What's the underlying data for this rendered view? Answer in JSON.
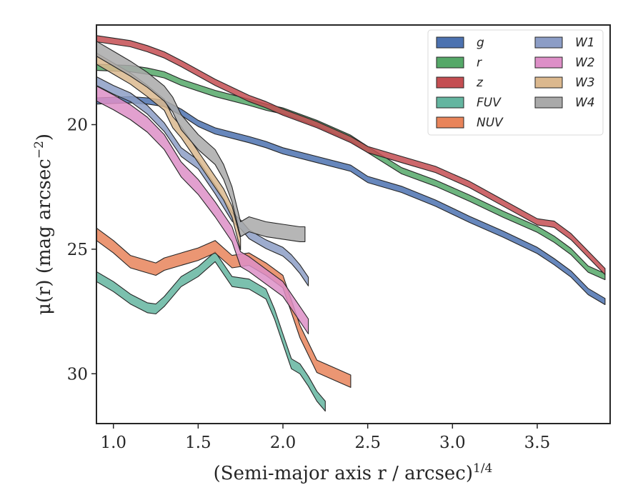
{
  "chart_data": {
    "type": "area",
    "xlabel": "(Semi-major axis r / arcsec)",
    "xlabel_exponent": "1/4",
    "ylabel": "μ(r) (mag arcsec",
    "ylabel_exponent": "−2",
    "ylabel_close": ")",
    "xlim": [
      0.9,
      3.93
    ],
    "ylim": [
      32.0,
      16.0
    ],
    "y_inverted": true,
    "x_ticks": [
      "1.0",
      "1.5",
      "2.0",
      "2.5",
      "3.0",
      "3.5"
    ],
    "x_tick_values": [
      1.0,
      1.5,
      2.0,
      2.5,
      3.0,
      3.5
    ],
    "y_ticks": [
      "20",
      "25",
      "30"
    ],
    "y_tick_values": [
      20,
      25,
      30
    ],
    "grid": false,
    "legend_position": "top-right",
    "series": [
      {
        "name": "g",
        "color": "#4c72b0",
        "x": [
          0.9,
          1.1,
          1.2,
          1.3,
          1.4,
          1.5,
          1.6,
          1.8,
          1.9,
          2.0,
          2.2,
          2.4,
          2.5,
          2.7,
          2.9,
          3.1,
          3.3,
          3.5,
          3.6,
          3.7,
          3.8,
          3.9
        ],
        "y": [
          19.05,
          19.0,
          19.05,
          19.15,
          19.5,
          19.95,
          20.25,
          20.6,
          20.8,
          21.05,
          21.4,
          21.75,
          22.2,
          22.6,
          23.15,
          23.8,
          24.4,
          25.05,
          25.5,
          26.0,
          26.7,
          27.1
        ],
        "width": 0.25
      },
      {
        "name": "r",
        "color": "#55a868",
        "x": [
          0.9,
          1.1,
          1.2,
          1.3,
          1.4,
          1.6,
          1.8,
          1.9,
          2.0,
          2.2,
          2.4,
          2.5,
          2.7,
          2.9,
          3.1,
          3.3,
          3.5,
          3.6,
          3.7,
          3.8,
          3.9
        ],
        "y": [
          17.7,
          17.75,
          17.85,
          18.0,
          18.3,
          18.75,
          19.1,
          19.3,
          19.45,
          19.95,
          20.55,
          21.0,
          21.85,
          22.35,
          22.95,
          23.6,
          24.2,
          24.6,
          25.1,
          25.8,
          26.1
        ],
        "width": 0.25
      },
      {
        "name": "z",
        "color": "#c44e52",
        "x": [
          0.9,
          1.1,
          1.2,
          1.3,
          1.4,
          1.6,
          1.8,
          1.9,
          2.0,
          2.2,
          2.4,
          2.5,
          2.7,
          2.9,
          3.1,
          3.3,
          3.5,
          3.6,
          3.7,
          3.8,
          3.9
        ],
        "y": [
          16.55,
          16.75,
          16.95,
          17.2,
          17.55,
          18.3,
          18.95,
          19.2,
          19.5,
          20.0,
          20.6,
          21.0,
          21.4,
          21.8,
          22.4,
          23.15,
          23.9,
          24.0,
          24.5,
          25.2,
          25.9
        ],
        "width": 0.25
      },
      {
        "name": "FUV",
        "color": "#64b5a0",
        "x": [
          0.9,
          1.0,
          1.1,
          1.2,
          1.25,
          1.3,
          1.4,
          1.5,
          1.6,
          1.7,
          1.8,
          1.9,
          1.95,
          2.0,
          2.05,
          2.1,
          2.15,
          2.2,
          2.25
        ],
        "y": [
          26.1,
          26.5,
          27.0,
          27.35,
          27.4,
          27.1,
          26.3,
          25.9,
          25.3,
          26.3,
          26.4,
          26.8,
          27.6,
          28.6,
          29.6,
          29.8,
          30.3,
          30.9,
          31.3
        ],
        "width": 0.4
      },
      {
        "name": "NUV",
        "color": "#e8845a",
        "x": [
          0.9,
          1.0,
          1.1,
          1.2,
          1.25,
          1.3,
          1.4,
          1.5,
          1.6,
          1.7,
          1.8,
          1.9,
          2.0,
          2.05,
          2.1,
          2.2,
          2.3,
          2.4
        ],
        "y": [
          24.4,
          24.9,
          25.5,
          25.7,
          25.8,
          25.6,
          25.4,
          25.2,
          24.9,
          25.5,
          25.4,
          25.8,
          26.3,
          27.3,
          28.3,
          29.7,
          30.0,
          30.3
        ],
        "width": 0.5
      },
      {
        "name": "W1",
        "color": "#8c9dc6",
        "x": [
          0.9,
          1.0,
          1.1,
          1.2,
          1.3,
          1.4,
          1.5,
          1.6,
          1.7,
          1.75,
          1.8,
          1.9,
          2.0,
          2.05,
          2.1,
          2.15
        ],
        "y": [
          18.25,
          18.6,
          18.9,
          19.4,
          20.1,
          21.1,
          21.6,
          22.6,
          23.7,
          24.0,
          24.4,
          24.8,
          25.1,
          25.4,
          25.8,
          26.3
        ],
        "width": 0.35
      },
      {
        "name": "W2",
        "color": "#dd8fc7",
        "x": [
          0.9,
          1.0,
          1.1,
          1.2,
          1.3,
          1.4,
          1.5,
          1.6,
          1.7,
          1.75,
          1.8,
          1.9,
          2.0,
          2.05,
          2.1,
          2.15
        ],
        "y": [
          18.75,
          19.1,
          19.5,
          20.0,
          20.7,
          21.8,
          22.5,
          23.4,
          24.4,
          25.4,
          25.6,
          26.1,
          26.6,
          27.1,
          27.6,
          28.1
        ],
        "width": 0.6
      },
      {
        "name": "W3",
        "color": "#dbb88e",
        "x": [
          0.9,
          1.0,
          1.1,
          1.2,
          1.3,
          1.35,
          1.4,
          1.5,
          1.6,
          1.65,
          1.7,
          1.75
        ],
        "y": [
          17.35,
          17.75,
          18.15,
          18.65,
          19.2,
          19.9,
          20.3,
          21.3,
          22.3,
          22.8,
          23.5,
          24.8
        ],
        "width": 0.45
      },
      {
        "name": "W4",
        "color": "#a9a9a9",
        "x": [
          0.9,
          1.0,
          1.1,
          1.2,
          1.3,
          1.35,
          1.4,
          1.5,
          1.6,
          1.65,
          1.7,
          1.75,
          1.8,
          1.9,
          2.0,
          2.1,
          2.13
        ],
        "y": [
          16.95,
          17.35,
          17.75,
          18.2,
          18.75,
          19.2,
          19.9,
          20.7,
          21.3,
          21.9,
          22.8,
          24.2,
          24.0,
          24.2,
          24.3,
          24.4,
          24.4
        ],
        "width": 0.6
      }
    ]
  }
}
